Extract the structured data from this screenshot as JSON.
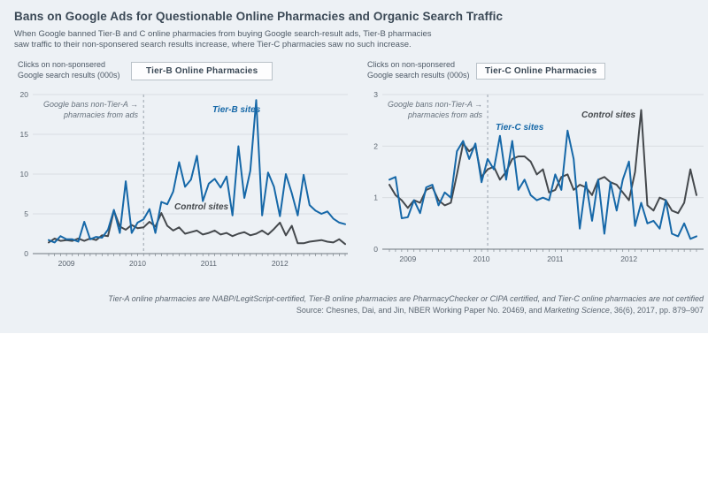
{
  "header": {
    "title": "Bans on Google Ads for Questionable Online Pharmacies and Organic Search Traffic",
    "subtitle_line1": "When Google banned Tier-B and C online pharmacies from buying Google search-result ads, Tier-B pharmacies",
    "subtitle_line2": "saw traffic to their non-sponsered search results increase, where Tier-C pharmacies saw no such increase."
  },
  "charts": [
    {
      "box_label": "Tier-B Online Pharmacies",
      "axis_label_line1": "Clicks on non-sponsered",
      "axis_label_line2": "Google search results (000s)",
      "annotation_line1": "Google bans non-Tier-A →",
      "annotation_line2": "pharmacies from ads",
      "treatment_label": "Tier-B sites",
      "control_label": "Control sites"
    },
    {
      "box_label": "Tier-C Online Pharmacies",
      "axis_label_line1": "Clicks on non-sponsered",
      "axis_label_line2": "Google search results (000s)",
      "annotation_line1": "Google bans non-Tier-A →",
      "annotation_line2": "pharmacies from ads",
      "treatment_label": "Tier-C sites",
      "control_label": "Control sites"
    }
  ],
  "footer": {
    "note": "Tier-A online pharmacies are NABP/LegitScript-certified, Tier-B online pharmacies are PharmacyChecker or CIPA certified, and Tier-C online pharmacies are not certified",
    "source_prefix": "Source: Chesnes, Dai, and Jin, NBER Working Paper No. 20469, and ",
    "source_italic": "Marketing Science",
    "source_suffix": ", 36(6), 2017, pp. 879–907"
  },
  "colors": {
    "panel_background": "#edf1f5",
    "treatment_blue": "#1668a8",
    "control_dark": "#45494d",
    "gridline": "#d9dde2",
    "axis": "#6e787f",
    "ban_line": "#9aa3ac",
    "text_dark": "#3b4956",
    "text_muted": "#5a6570"
  },
  "chart_data": [
    {
      "type": "line",
      "title": "Tier-B Online Pharmacies",
      "ylabel": "Clicks on non-sponsered Google search results (000s)",
      "x_start": "2008-10",
      "x_freq": "monthly",
      "x_year_ticks": [
        "2009",
        "2010",
        "2011",
        "2012"
      ],
      "ylim": [
        0,
        20
      ],
      "yticks": [
        0,
        5,
        10,
        15,
        20
      ],
      "grid": true,
      "event": {
        "label": "Google bans non-Tier-A pharmacies from ads",
        "x": "2010-02",
        "x_index": 16
      },
      "series": [
        {
          "name": "Tier-B sites",
          "color": "#1668a8",
          "values": [
            1.7,
            1.4,
            2.2,
            1.8,
            1.8,
            1.5,
            4.0,
            1.8,
            2.1,
            2.0,
            3.0,
            5.5,
            2.6,
            9.1,
            2.6,
            3.9,
            4.3,
            5.6,
            2.6,
            6.5,
            6.2,
            7.8,
            11.5,
            8.4,
            9.3,
            12.3,
            6.6,
            8.8,
            9.4,
            8.3,
            9.7,
            4.8,
            13.5,
            7.0,
            10.4,
            19.3,
            4.8,
            10.2,
            8.4,
            4.7,
            10.0,
            7.6,
            4.8,
            9.9,
            6.1,
            5.4,
            5.0,
            5.3,
            4.4,
            3.9,
            3.7
          ]
        },
        {
          "name": "Control sites",
          "color": "#45494d",
          "values": [
            1.4,
            1.9,
            1.6,
            1.7,
            1.6,
            1.9,
            1.6,
            1.9,
            1.7,
            2.3,
            2.2,
            5.4,
            3.4,
            3.0,
            3.6,
            3.2,
            3.3,
            4.0,
            3.4,
            5.1,
            3.5,
            2.9,
            3.3,
            2.5,
            2.7,
            2.9,
            2.4,
            2.6,
            2.9,
            2.4,
            2.6,
            2.2,
            2.5,
            2.7,
            2.3,
            2.5,
            2.9,
            2.4,
            3.1,
            3.9,
            2.3,
            3.5,
            1.3,
            1.3,
            1.5,
            1.6,
            1.7,
            1.5,
            1.4,
            1.8,
            1.2
          ]
        }
      ]
    },
    {
      "type": "line",
      "title": "Tier-C Online Pharmacies",
      "ylabel": "Clicks on non-sponsered Google search results (000s)",
      "x_start": "2008-10",
      "x_freq": "monthly",
      "x_year_ticks": [
        "2009",
        "2010",
        "2011",
        "2012"
      ],
      "ylim": [
        0,
        3
      ],
      "yticks": [
        0,
        1,
        2,
        3
      ],
      "grid": true,
      "event": {
        "label": "Google bans non-Tier-A pharmacies from ads",
        "x": "2010-02",
        "x_index": 16
      },
      "series": [
        {
          "name": "Tier-C sites",
          "color": "#1668a8",
          "values": [
            1.35,
            1.4,
            0.6,
            0.62,
            0.95,
            0.7,
            1.2,
            1.25,
            0.85,
            1.1,
            1.0,
            1.9,
            2.1,
            1.75,
            2.05,
            1.3,
            1.75,
            1.55,
            2.2,
            1.35,
            2.1,
            1.15,
            1.35,
            1.05,
            0.95,
            1.0,
            0.95,
            1.45,
            1.15,
            2.3,
            1.75,
            0.4,
            1.3,
            0.55,
            1.35,
            0.3,
            1.3,
            0.75,
            1.35,
            1.7,
            0.45,
            0.9,
            0.5,
            0.55,
            0.4,
            0.95,
            0.3,
            0.25,
            0.5,
            0.2,
            0.25
          ]
        },
        {
          "name": "Control sites",
          "color": "#45494d",
          "values": [
            1.25,
            1.05,
            0.95,
            0.8,
            0.95,
            0.9,
            1.15,
            1.2,
            0.95,
            0.85,
            0.9,
            1.45,
            2.05,
            1.9,
            2.0,
            1.4,
            1.55,
            1.6,
            1.35,
            1.5,
            1.75,
            1.8,
            1.8,
            1.7,
            1.45,
            1.55,
            1.1,
            1.15,
            1.4,
            1.45,
            1.15,
            1.25,
            1.2,
            1.05,
            1.35,
            1.4,
            1.3,
            1.25,
            1.1,
            0.95,
            1.5,
            2.7,
            0.85,
            0.75,
            1.0,
            0.95,
            0.75,
            0.7,
            0.9,
            1.55,
            1.05
          ]
        }
      ]
    }
  ]
}
